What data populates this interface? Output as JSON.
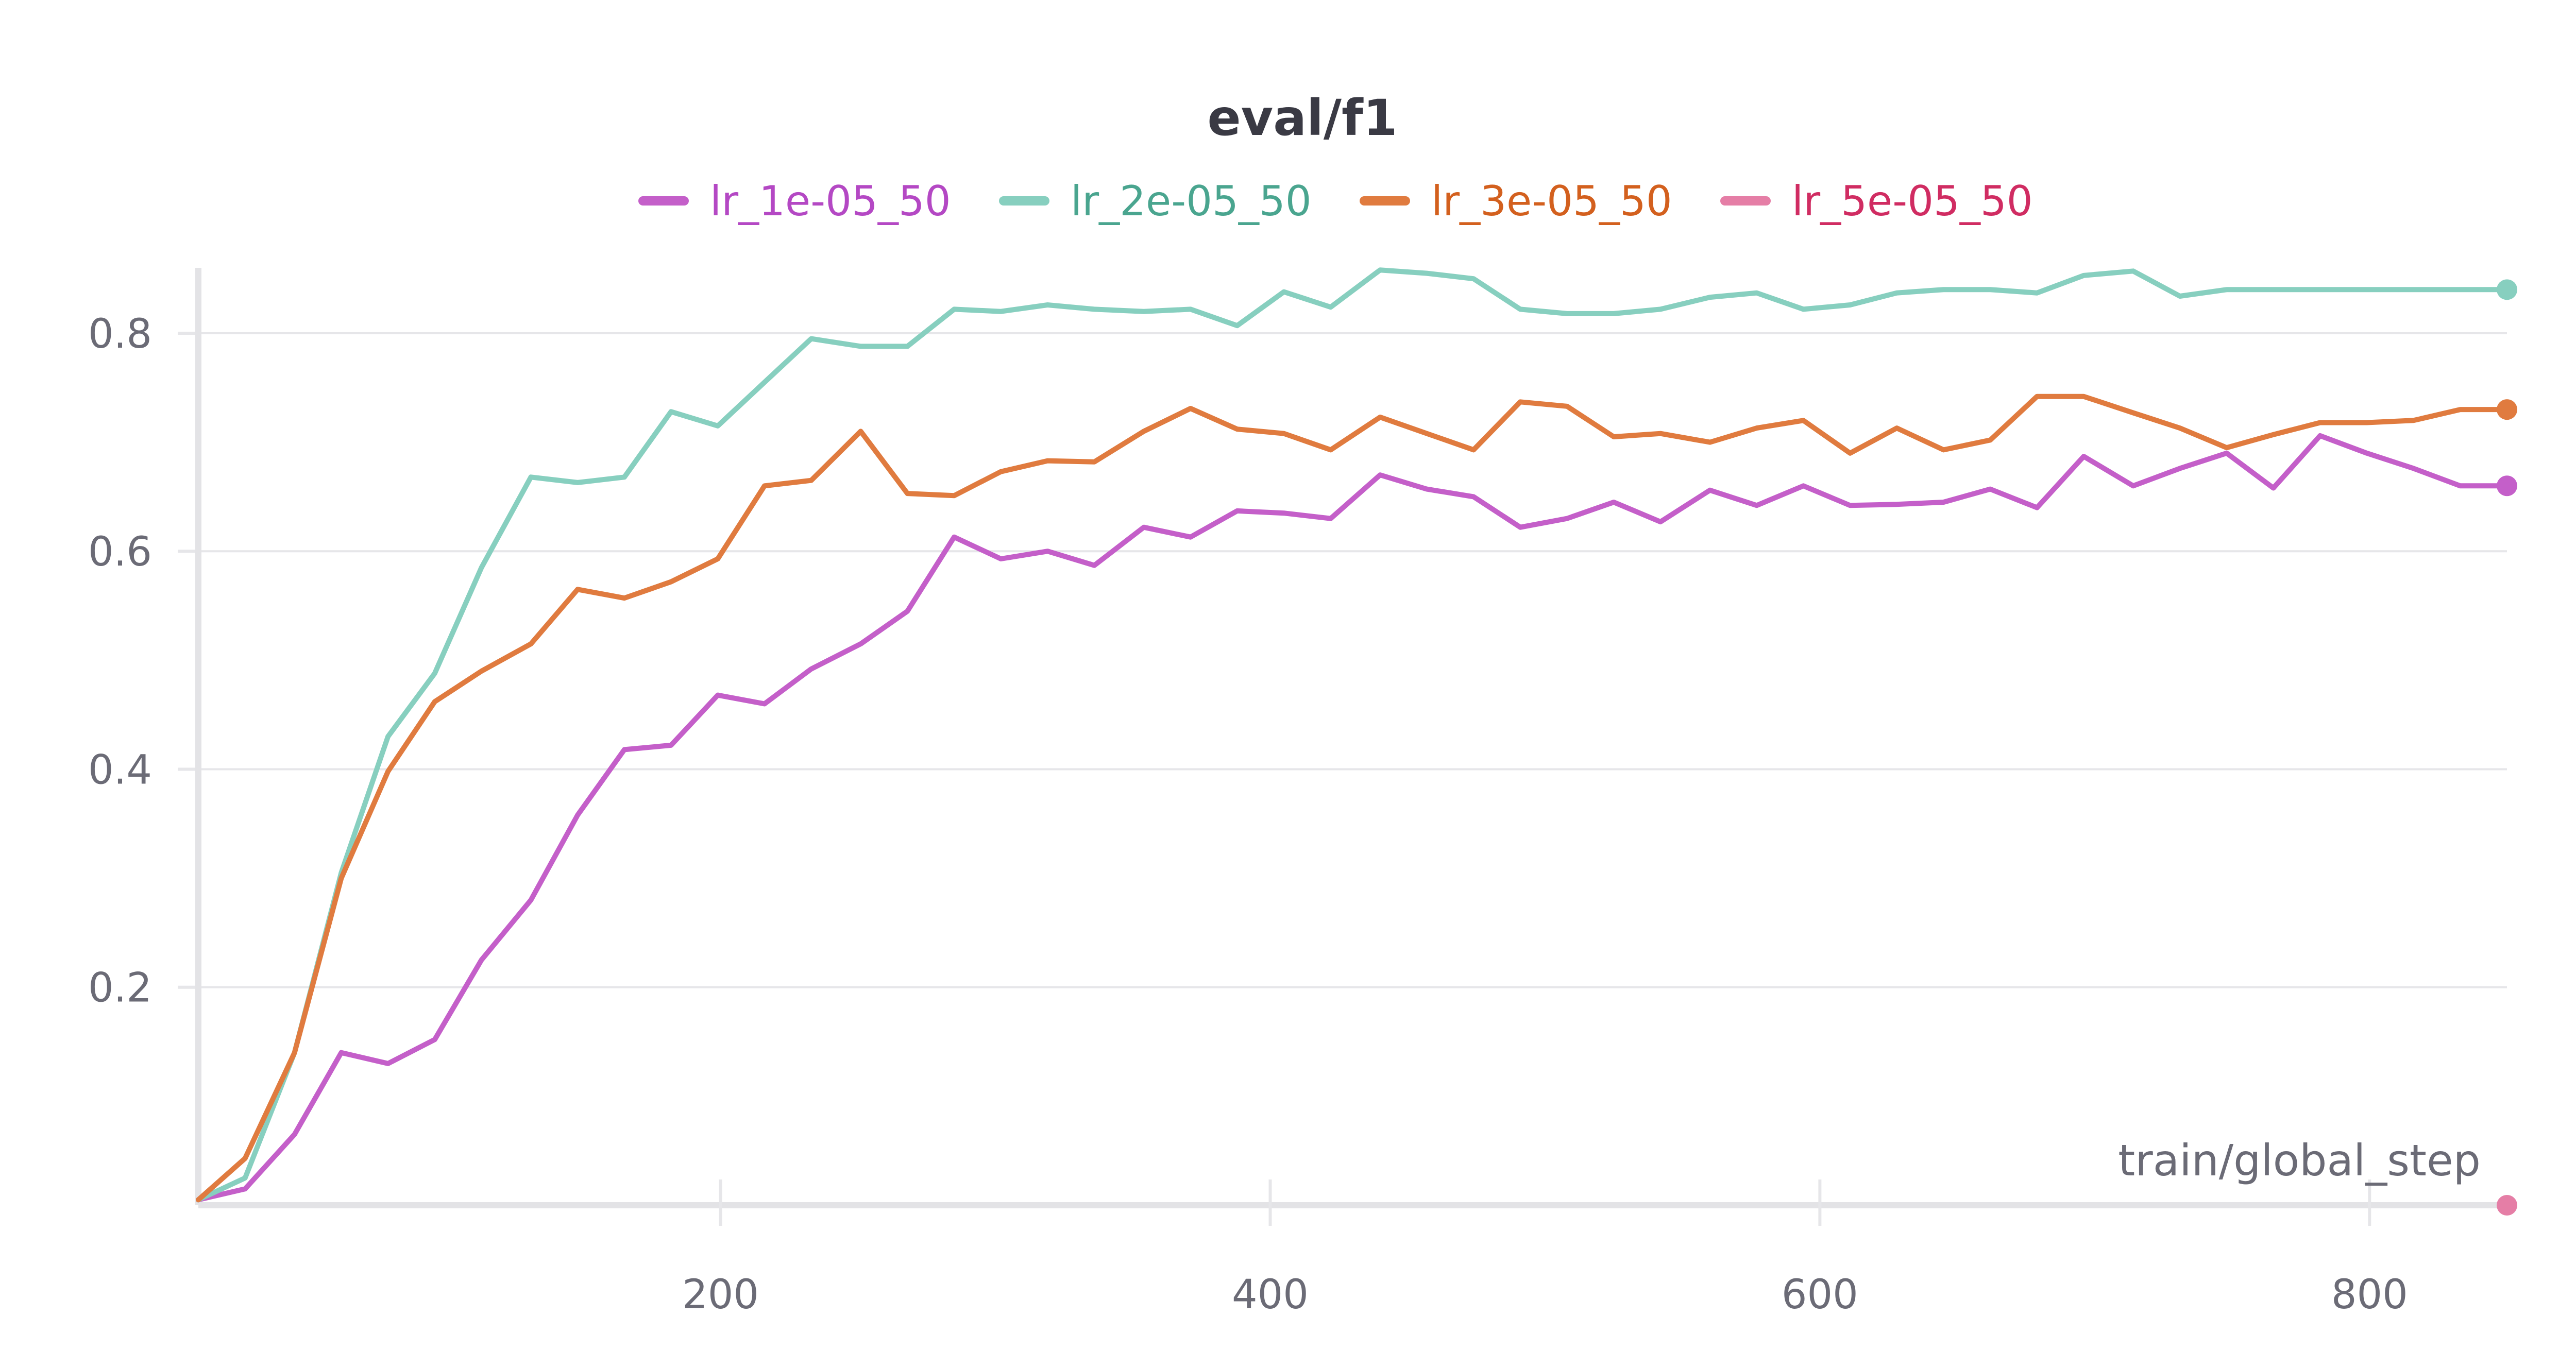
{
  "chart_data": {
    "type": "line",
    "title": "eval/f1",
    "xlabel": "train/global_step",
    "ylabel": "",
    "xlim": [
      10,
      850
    ],
    "ylim": [
      0,
      0.86
    ],
    "x_ticks": [
      200,
      400,
      600,
      800
    ],
    "y_ticks": [
      0.2,
      0.4,
      0.6,
      0.8
    ],
    "grid": true,
    "legend_position": "top",
    "series": [
      {
        "name": "lr_1e-05_50",
        "color": "#c45fc9",
        "x": [
          10,
          27,
          45,
          62,
          79,
          96,
          113,
          131,
          148,
          165,
          182,
          199,
          216,
          233,
          251,
          268,
          285,
          302,
          319,
          336,
          354,
          371,
          388,
          405,
          422,
          440,
          457,
          474,
          491,
          508,
          525,
          542,
          560,
          577,
          594,
          611,
          628,
          645,
          662,
          679,
          696,
          714,
          731,
          748,
          765,
          782,
          799,
          816,
          833,
          850
        ],
        "y": [
          0.005,
          0.015,
          0.065,
          0.14,
          0.13,
          0.152,
          0.225,
          0.28,
          0.358,
          0.418,
          0.422,
          0.468,
          0.46,
          0.492,
          0.515,
          0.545,
          0.613,
          0.593,
          0.6,
          0.587,
          0.622,
          0.613,
          0.637,
          0.635,
          0.63,
          0.67,
          0.657,
          0.65,
          0.622,
          0.63,
          0.645,
          0.627,
          0.656,
          0.642,
          0.66,
          0.642,
          0.643,
          0.645,
          0.657,
          0.64,
          0.687,
          0.66,
          0.676,
          0.69,
          0.658,
          0.706,
          0.69,
          0.676,
          0.66,
          0.66
        ]
      },
      {
        "name": "lr_2e-05_50",
        "color": "#87cfbf",
        "x": [
          10,
          27,
          45,
          62,
          79,
          96,
          113,
          131,
          148,
          165,
          182,
          199,
          216,
          233,
          251,
          268,
          285,
          302,
          319,
          336,
          354,
          371,
          388,
          405,
          422,
          440,
          457,
          474,
          491,
          508,
          525,
          542,
          560,
          577,
          594,
          611,
          628,
          645,
          662,
          679,
          696,
          714,
          731,
          748,
          765,
          782,
          799,
          816,
          833,
          850
        ],
        "y": [
          0.005,
          0.025,
          0.14,
          0.305,
          0.43,
          0.488,
          0.585,
          0.668,
          0.663,
          0.668,
          0.728,
          0.715,
          0.755,
          0.795,
          0.788,
          0.788,
          0.822,
          0.82,
          0.826,
          0.822,
          0.82,
          0.822,
          0.807,
          0.838,
          0.824,
          0.858,
          0.855,
          0.85,
          0.822,
          0.818,
          0.818,
          0.822,
          0.833,
          0.837,
          0.822,
          0.826,
          0.837,
          0.84,
          0.84,
          0.837,
          0.853,
          0.857,
          0.834,
          0.84,
          0.84,
          0.84,
          0.84,
          0.84,
          0.84,
          0.84
        ]
      },
      {
        "name": "lr_3e-05_50",
        "color": "#e07b3f",
        "x": [
          10,
          27,
          45,
          62,
          79,
          96,
          113,
          131,
          148,
          165,
          182,
          199,
          216,
          233,
          251,
          268,
          285,
          302,
          319,
          336,
          354,
          371,
          388,
          405,
          422,
          440,
          457,
          474,
          491,
          508,
          525,
          542,
          560,
          577,
          594,
          611,
          628,
          645,
          662,
          679,
          696,
          714,
          731,
          748,
          765,
          782,
          799,
          816,
          833,
          850
        ],
        "y": [
          0.005,
          0.043,
          0.14,
          0.3,
          0.398,
          0.462,
          0.49,
          0.515,
          0.565,
          0.557,
          0.572,
          0.593,
          0.66,
          0.665,
          0.71,
          0.653,
          0.651,
          0.673,
          0.683,
          0.682,
          0.71,
          0.731,
          0.712,
          0.708,
          0.693,
          0.723,
          0.708,
          0.693,
          0.737,
          0.733,
          0.705,
          0.708,
          0.7,
          0.713,
          0.72,
          0.69,
          0.713,
          0.693,
          0.702,
          0.742,
          0.742,
          0.727,
          0.713,
          0.695,
          0.707,
          0.718,
          0.718,
          0.72,
          0.73,
          0.73
        ]
      },
      {
        "name": "lr_5e-05_50",
        "color": "#e57ea6",
        "x": [
          850
        ],
        "y": [
          0.0
        ]
      }
    ]
  },
  "legend_text_colors": [
    "#b448c4",
    "#4aa58f",
    "#d3601e",
    "#d02c62"
  ]
}
